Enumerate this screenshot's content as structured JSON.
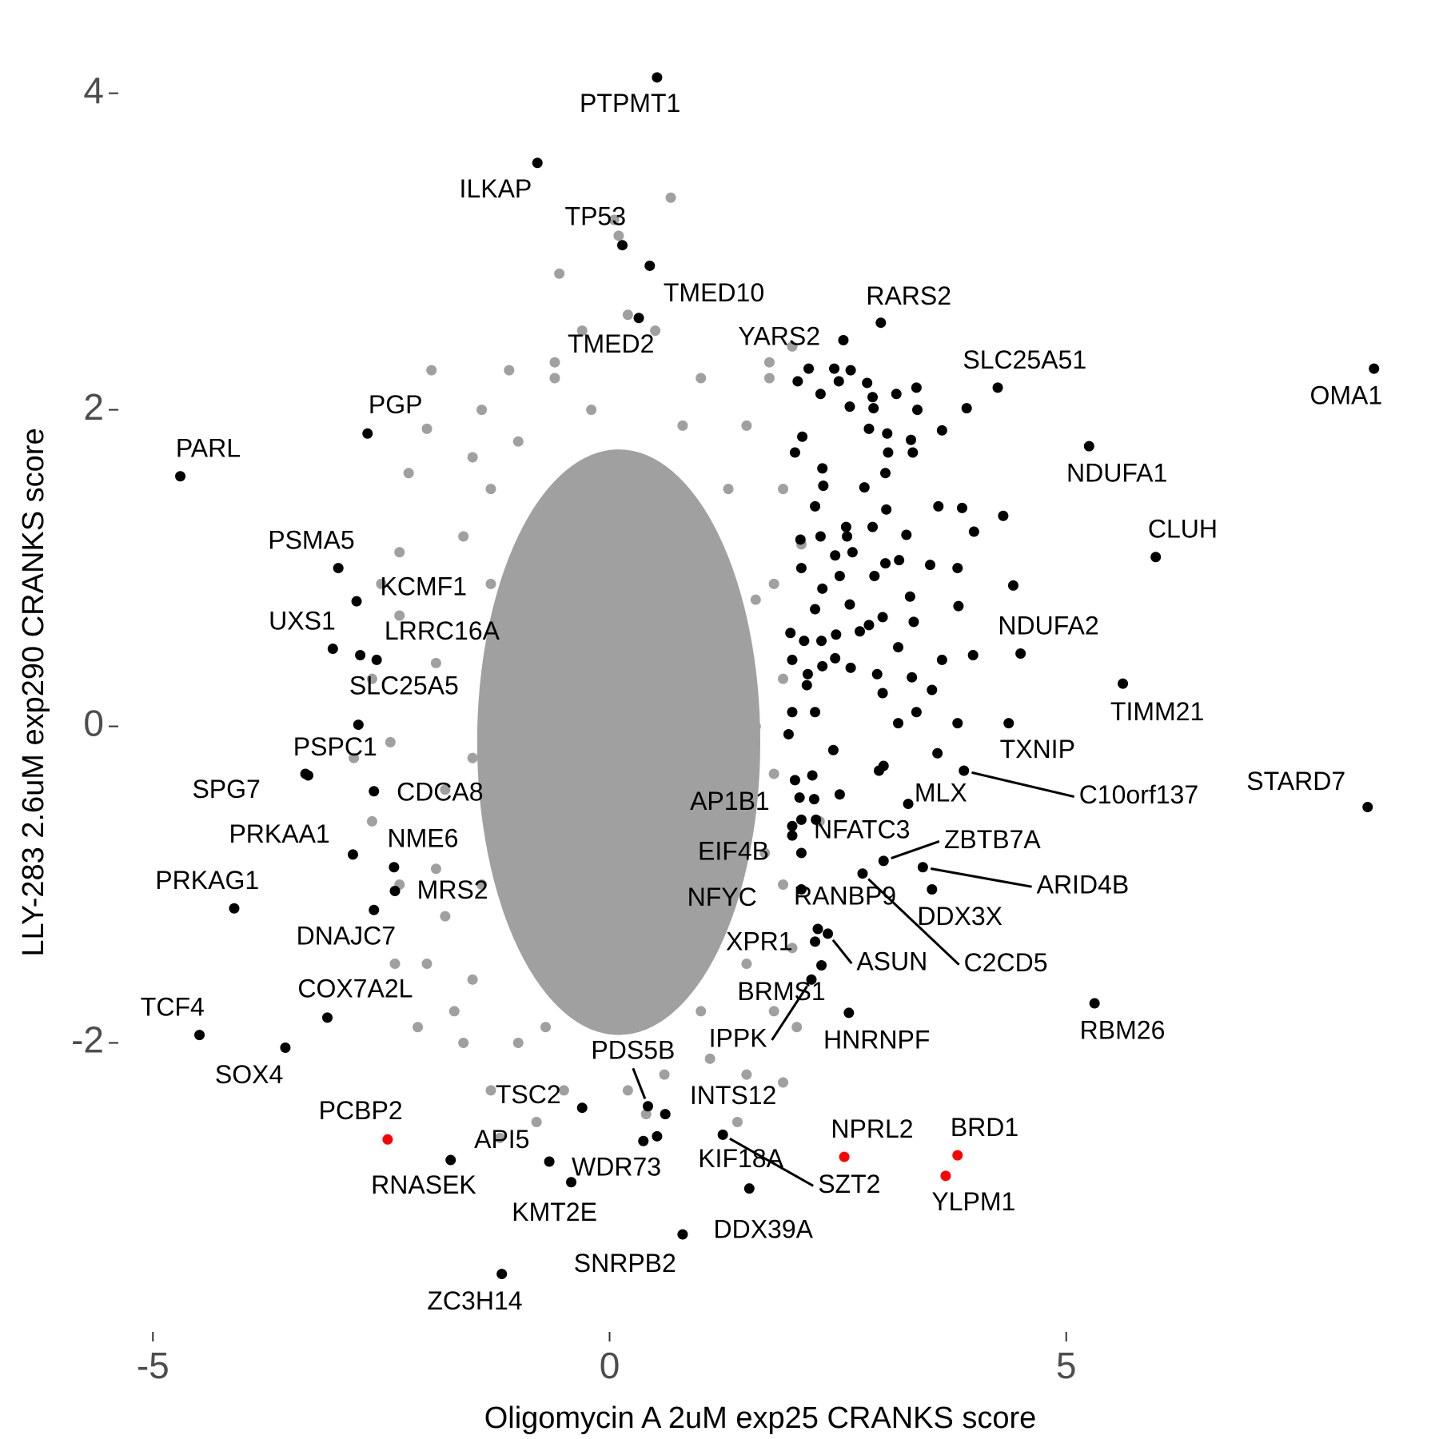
{
  "chart_data": {
    "type": "scatter",
    "x_label": "Oligomycin A 2uM exp25 CRANKS score",
    "y_label": "LLY-283 2.6uM exp290 CRANKS score",
    "xlim": [
      -5.3,
      8.6
    ],
    "ylim": [
      -3.75,
      4.18
    ],
    "xticks": [
      -5,
      0,
      5
    ],
    "yticks": [
      -2,
      0,
      2,
      4
    ],
    "grid": false,
    "series": [
      {
        "color": "#a0a0a0",
        "x": [
          0.67,
          0.1,
          -1.1,
          -0.6,
          1.75,
          1.75,
          -1.4,
          -2.0,
          -2.2,
          -1.5,
          -2.3,
          -2.3,
          -2.6,
          -2.4,
          -2.6,
          -2.3,
          -2.0,
          -1.7,
          -1.6,
          -1.3,
          -1.2,
          -0.8,
          -0.5,
          0.2,
          0.6,
          1.1,
          1.5,
          1.9,
          1.8,
          2.0,
          1.9,
          1.8,
          1.9,
          1.8,
          1.9,
          1.5,
          1.0,
          0.5,
          0.2,
          -0.3,
          -0.6,
          -1.3,
          -1.6,
          -1.9,
          -1.8,
          -1.8,
          -1.5,
          -1.0,
          0,
          1.0,
          1.5,
          1.7,
          1.6,
          1.6,
          1.3,
          0.8,
          -0.2,
          -1.0,
          -1.3,
          -1.5,
          -1.4,
          -0.7,
          0.5,
          1.2,
          1.3,
          -2.1,
          -2.5,
          -1.95,
          2.1,
          2.05,
          2.3,
          -0.55,
          0.05,
          -2.35,
          -1.9,
          1.4,
          0.4,
          -2.8,
          2.0
        ],
        "y": [
          3.34,
          3.1,
          2.25,
          2.3,
          2.3,
          2.2,
          2.0,
          1.88,
          1.6,
          1.7,
          1.1,
          0.7,
          0.3,
          -0.1,
          -0.6,
          -1.0,
          -1.5,
          -1.8,
          -2.0,
          -2.3,
          -2.6,
          -2.5,
          -2.3,
          -2.3,
          -2.2,
          -2.1,
          -2.2,
          -2.25,
          -1.8,
          -1.4,
          -1.0,
          -0.3,
          0.3,
          0.9,
          1.5,
          1.9,
          2.2,
          2.5,
          2.6,
          2.5,
          2.2,
          1.5,
          1.2,
          0.4,
          -0.4,
          -1.2,
          -1.6,
          -2.0,
          -1.9,
          -1.8,
          -1.5,
          -0.8,
          0,
          0.8,
          1.5,
          1.9,
          2.0,
          1.8,
          0.9,
          -0.2,
          -1.0,
          -1.9,
          -1.8,
          -1.0,
          0.5,
          -1.9,
          0.9,
          2.25,
          1.15,
          -1.9,
          -0.6,
          2.86,
          3.2,
          -1.5,
          -0.9,
          -2.5,
          -2.45,
          -0.2,
          2.4
        ]
      },
      {
        "color": "#000000",
        "x": [
          2.06,
          2.18,
          2.31,
          2.46,
          2.51,
          2.64,
          2.82,
          2.63,
          2.88,
          2.89,
          3.14,
          3.36,
          3.37,
          2.84,
          3.04,
          2.11,
          2.03,
          3.64,
          3.3,
          3.05,
          3.32,
          2.33,
          2.34,
          2.79,
          3.02,
          3.6,
          3.86,
          4.31,
          3.99,
          2.25,
          3.03,
          2.59,
          2.88,
          2.09,
          2.31,
          2.6,
          3.25,
          2.47,
          2.66,
          3.02,
          3.17,
          3.81,
          3.51,
          4.42,
          2.1,
          2.33,
          2.52,
          2.9,
          3.29,
          3.82,
          2.25,
          2.63,
          2.99,
          3.33,
          1.98,
          2.13,
          2.32,
          2.48,
          2.74,
          2.84,
          3.98,
          3.16,
          3.64,
          2.0,
          2.17,
          2.33,
          2.47,
          2.64,
          2.93,
          3.31,
          3.53,
          2.16,
          2.0,
          2.25,
          2.99,
          3.36,
          3.16,
          3.81,
          1.96,
          2.45,
          2.95,
          2.22,
          2.03,
          2.52,
          2.24,
          3.0,
          3.59,
          2.1,
          2.26,
          2.0,
          3.91,
          -2.55
        ],
        "y": [
          2.18,
          2.26,
          2.1,
          2.26,
          2.18,
          2.25,
          2.17,
          2.02,
          2.08,
          2.01,
          2.1,
          2.14,
          2.0,
          1.88,
          1.85,
          1.83,
          1.73,
          1.87,
          1.81,
          1.73,
          1.73,
          1.63,
          1.52,
          1.51,
          1.6,
          1.39,
          1.38,
          1.33,
          1.23,
          1.39,
          1.37,
          1.26,
          1.26,
          1.18,
          1.2,
          1.2,
          1.21,
          1.08,
          1.1,
          1.03,
          1.05,
          1.0,
          1.02,
          0.89,
          1.0,
          0.87,
          0.95,
          0.95,
          0.82,
          0.76,
          0.74,
          0.77,
          0.69,
          0.66,
          0.59,
          0.54,
          0.54,
          0.58,
          0.6,
          0.64,
          0.45,
          0.5,
          0.42,
          0.42,
          0.33,
          0.38,
          0.43,
          0.37,
          0.33,
          0.31,
          0.23,
          0.26,
          0.09,
          0.09,
          0.21,
          0.09,
          0.02,
          0.02,
          -0.05,
          -0.15,
          -0.28,
          -0.31,
          -0.34,
          -0.43,
          -0.46,
          -0.25,
          -0.17,
          -0.59,
          -0.59,
          -0.69,
          2.01,
          0.42
        ]
      },
      {
        "color": "#000000",
        "labels": [
          "PTPMT1",
          "ILKAP",
          "TP53",
          "TMED10",
          "TMED2",
          "RARS2",
          "YARS2",
          "SLC25A51",
          "OMA1",
          "PGP",
          "PARL",
          "NDUFA1",
          "CLUH",
          "PSMA5",
          "KCMF1",
          "UXS1",
          "LRRC16A",
          "SLC25A5",
          "NDUFA2",
          "TIMM21",
          "TXNIP",
          "PSPC1",
          "SPG7",
          "CDCA8",
          "C10orf137",
          "STARD7",
          "MLX",
          "AP1B1",
          "NFATC3",
          "EIF4B",
          "ZBTB7A",
          "ARID4B",
          "PRKAA1",
          "NME6",
          "PRKAG1",
          "MRS2",
          "DNAJC7",
          "DDX3X",
          "RANBP9",
          "C2CD5",
          "NFYC",
          "XPR1",
          "ASUN",
          "BRMS1",
          "IPPK",
          "HNRNPF",
          "RBM26",
          "COX7A2L",
          "TCF4",
          "SOX4",
          "PDS5B",
          "TSC2",
          "INTS12",
          "API5",
          "RNASEK",
          "WDR73",
          "KMT2E",
          "KIF18A",
          "SZT2",
          "DDX39A",
          "SNRPB2",
          "ZC3H14"
        ],
        "x": [
          0.52,
          -0.79,
          0.14,
          0.44,
          0.32,
          2.97,
          2.56,
          4.25,
          8.37,
          -2.65,
          -4.7,
          5.25,
          5.98,
          -2.97,
          -2.77,
          -3.03,
          -2.73,
          -2.75,
          4.5,
          5.62,
          4.37,
          -3.33,
          -3.3,
          -2.58,
          3.88,
          8.3,
          3.27,
          2.08,
          2.0,
          2.1,
          3.0,
          3.43,
          -2.81,
          -2.36,
          -4.11,
          -2.35,
          -2.58,
          3.53,
          2.1,
          2.77,
          2.28,
          2.25,
          2.39,
          2.32,
          2.21,
          2.62,
          5.31,
          -3.09,
          -4.49,
          -3.55,
          0.42,
          -0.3,
          0.61,
          -0.66,
          -1.74,
          0.37,
          -0.42,
          0.52,
          1.24,
          1.53,
          0.8,
          -1.18
        ],
        "y": [
          4.1,
          3.56,
          3.04,
          2.91,
          2.58,
          2.55,
          2.44,
          2.14,
          2.26,
          1.85,
          1.58,
          1.77,
          1.07,
          1.0,
          0.79,
          0.49,
          0.45,
          0.01,
          0.46,
          0.27,
          0.02,
          -0.3,
          -0.31,
          -0.41,
          -0.28,
          -0.51,
          -0.49,
          -0.45,
          -0.63,
          -0.8,
          -0.85,
          -0.89,
          -0.81,
          -0.89,
          -1.15,
          -1.04,
          -1.16,
          -1.03,
          -1.03,
          -0.93,
          -1.28,
          -1.36,
          -1.31,
          -1.51,
          -1.6,
          -1.81,
          -1.75,
          -1.84,
          -1.95,
          -2.03,
          -2.4,
          -2.41,
          -2.45,
          -2.75,
          -2.74,
          -2.62,
          -2.88,
          -2.59,
          -2.58,
          -2.92,
          -3.21,
          -3.46
        ]
      },
      {
        "color": "#ff0000",
        "labels": [
          "PCBP2",
          "NPRL2",
          "BRD1",
          "YLPM1"
        ],
        "x": [
          -2.43,
          2.57,
          3.81,
          3.68
        ],
        "y": [
          -2.61,
          -2.72,
          -2.71,
          -2.84
        ]
      }
    ]
  }
}
